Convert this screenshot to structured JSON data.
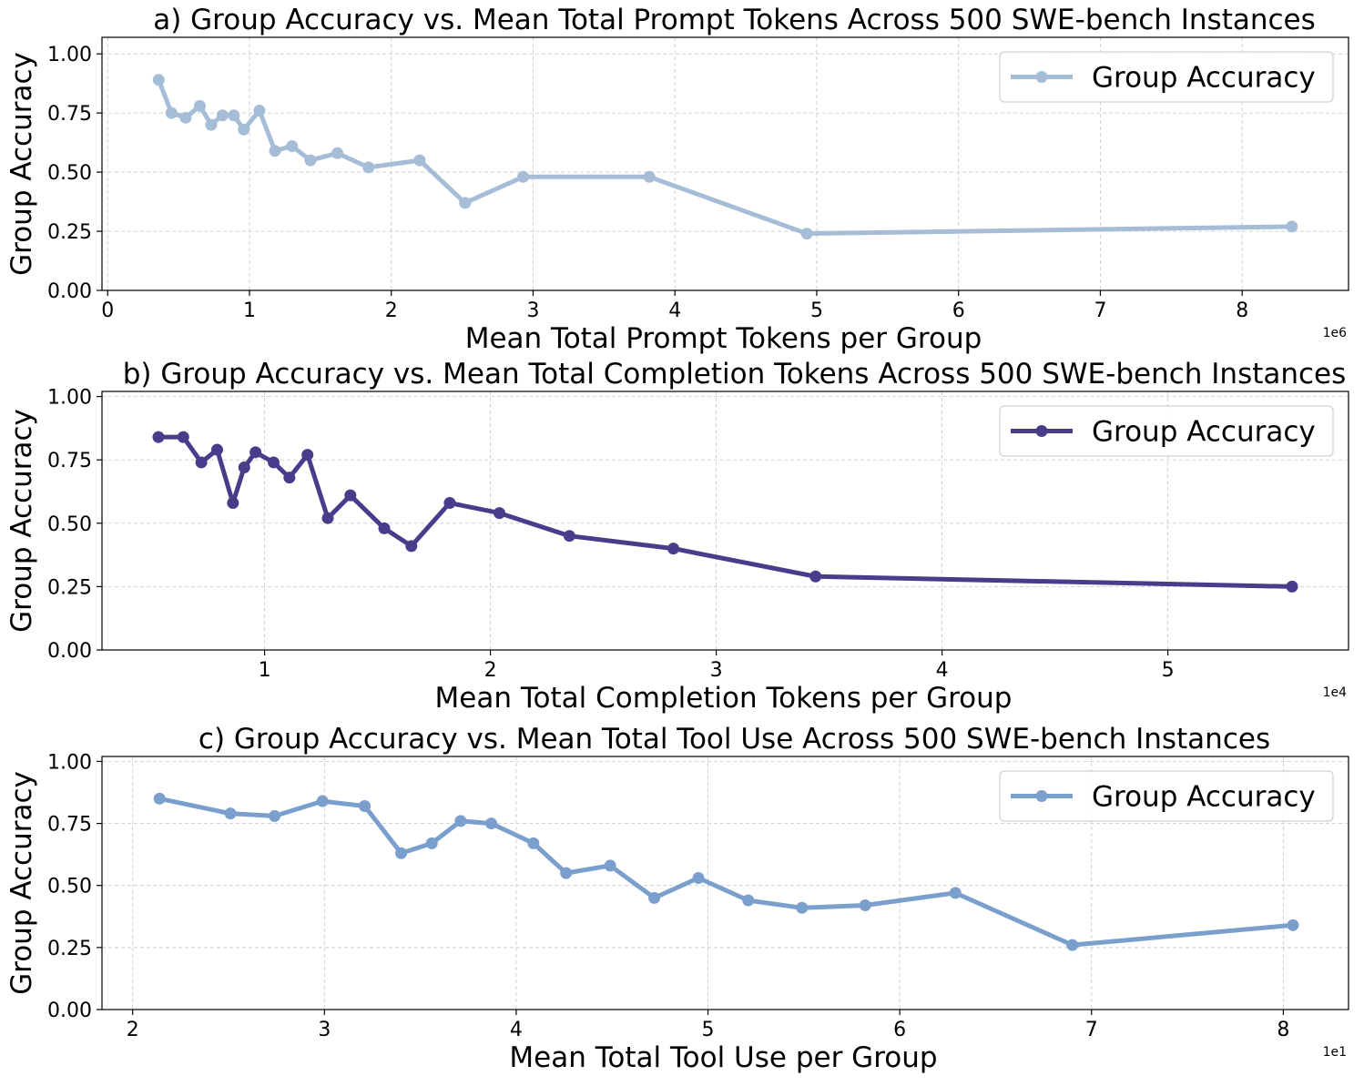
{
  "chart_data": [
    {
      "type": "line",
      "title": "a) Group Accuracy vs. Mean Total Prompt Tokens Across 500 SWE-bench Instances",
      "xlabel": "Mean Total Prompt Tokens per Group",
      "ylabel": "Group Accuracy",
      "x_offset_label": "1e6",
      "x_scale": 1000000,
      "xlim": [
        -0.04,
        8.75
      ],
      "ylim": [
        0,
        1.07
      ],
      "xticks": [
        0,
        1,
        2,
        3,
        4,
        5,
        6,
        7,
        8
      ],
      "xtick_labels": [
        "0",
        "1",
        "2",
        "3",
        "4",
        "5",
        "6",
        "7",
        "8"
      ],
      "yticks": [
        0,
        0.25,
        0.5,
        0.75,
        1.0
      ],
      "ytick_labels": [
        "0.00",
        "0.25",
        "0.50",
        "0.75",
        "1.00"
      ],
      "grid": true,
      "legend": "top-right",
      "series": [
        {
          "name": "Group Accuracy",
          "color": "#a6bdd7",
          "x": [
            0.36,
            0.45,
            0.55,
            0.65,
            0.73,
            0.81,
            0.89,
            0.96,
            1.07,
            1.18,
            1.3,
            1.43,
            1.62,
            1.84,
            2.2,
            2.52,
            2.93,
            3.82,
            4.93,
            8.35
          ],
          "y": [
            0.89,
            0.75,
            0.73,
            0.78,
            0.7,
            0.74,
            0.74,
            0.68,
            0.76,
            0.59,
            0.61,
            0.55,
            0.58,
            0.52,
            0.55,
            0.37,
            0.48,
            0.48,
            0.24,
            0.27
          ]
        }
      ]
    },
    {
      "type": "line",
      "title": "b) Group Accuracy vs. Mean Total Completion Tokens Across 500 SWE-bench Instances",
      "xlabel": "Mean Total Completion Tokens per Group",
      "ylabel": "Group Accuracy",
      "x_offset_label": "1e4",
      "x_scale": 10000,
      "xlim": [
        0.28,
        5.8
      ],
      "ylim": [
        0,
        1.02
      ],
      "xticks": [
        1,
        2,
        3,
        4,
        5
      ],
      "xtick_labels": [
        "1",
        "2",
        "3",
        "4",
        "5"
      ],
      "yticks": [
        0,
        0.25,
        0.5,
        0.75,
        1.0
      ],
      "ytick_labels": [
        "0.00",
        "0.25",
        "0.50",
        "0.75",
        "1.00"
      ],
      "grid": true,
      "legend": "top-right",
      "series": [
        {
          "name": "Group Accuracy",
          "color": "#483d8b",
          "x": [
            0.53,
            0.64,
            0.72,
            0.79,
            0.86,
            0.91,
            0.96,
            1.04,
            1.11,
            1.19,
            1.28,
            1.38,
            1.53,
            1.65,
            1.82,
            2.04,
            2.35,
            2.81,
            3.44,
            5.55
          ],
          "y": [
            0.84,
            0.84,
            0.74,
            0.79,
            0.58,
            0.72,
            0.78,
            0.74,
            0.68,
            0.77,
            0.52,
            0.61,
            0.48,
            0.41,
            0.58,
            0.54,
            0.45,
            0.4,
            0.29,
            0.25
          ]
        }
      ]
    },
    {
      "type": "line",
      "title": "c) Group Accuracy vs. Mean Total Tool Use Across 500 SWE-bench Instances",
      "xlabel": "Mean Total Tool Use per Group",
      "ylabel": "Group Accuracy",
      "x_offset_label": "1e1",
      "x_scale": 10,
      "xlim": [
        1.84,
        8.34
      ],
      "ylim": [
        0,
        1.02
      ],
      "xticks": [
        2,
        3,
        4,
        5,
        6,
        7,
        8
      ],
      "xtick_labels": [
        "2",
        "3",
        "4",
        "5",
        "6",
        "7",
        "8"
      ],
      "yticks": [
        0,
        0.25,
        0.5,
        0.75,
        1.0
      ],
      "ytick_labels": [
        "0.00",
        "0.25",
        "0.50",
        "0.75",
        "1.00"
      ],
      "grid": true,
      "legend": "top-right",
      "series": [
        {
          "name": "Group Accuracy",
          "color": "#7a9fcc",
          "x": [
            2.14,
            2.51,
            2.74,
            2.99,
            3.21,
            3.4,
            3.56,
            3.71,
            3.87,
            4.09,
            4.26,
            4.49,
            4.72,
            4.95,
            5.21,
            5.49,
            5.82,
            6.29,
            6.9,
            8.05
          ],
          "y": [
            0.85,
            0.79,
            0.78,
            0.84,
            0.82,
            0.63,
            0.67,
            0.76,
            0.75,
            0.67,
            0.55,
            0.58,
            0.45,
            0.53,
            0.44,
            0.41,
            0.42,
            0.47,
            0.26,
            0.34
          ]
        }
      ]
    }
  ]
}
